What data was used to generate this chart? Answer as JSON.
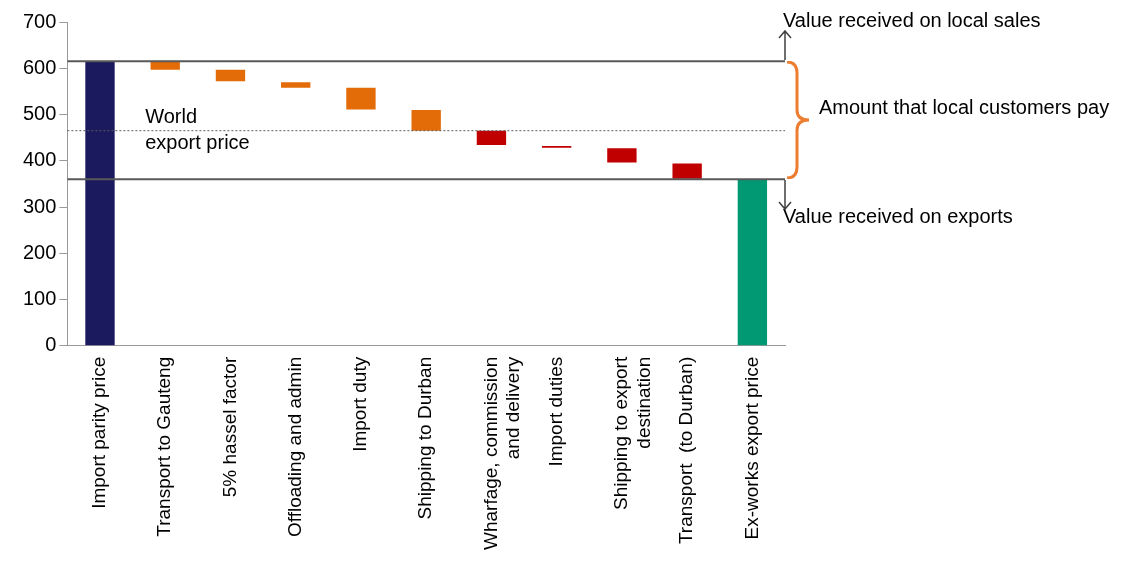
{
  "chart_data": {
    "type": "bar",
    "categories": [
      "Import parity price",
      "Transport to Gauteng",
      "5% hassel factor",
      "Offloading and admin",
      "Import duty",
      "Shipping to Durban",
      "Wharfage, commission and delivery",
      "Import duties",
      "Shipping to export destination",
      "Transport  (to Durban)",
      "Ex-works export price"
    ],
    "values": [
      615,
      18,
      25,
      12,
      47,
      45,
      31,
      4,
      31,
      33,
      360
    ],
    "base": [
      0,
      597,
      572,
      558,
      511,
      465,
      434,
      428,
      396,
      361,
      0
    ],
    "colors": [
      "#1c1a5e",
      "#e36c09",
      "#e36c09",
      "#e36c09",
      "#e36c09",
      "#e36c09",
      "#c00000",
      "#c00000",
      "#c00000",
      "#c00000",
      "#009973"
    ],
    "ylim": [
      0,
      700
    ],
    "yticks": [
      0,
      100,
      200,
      300,
      400,
      500,
      600,
      700
    ],
    "grid": false,
    "legend": false,
    "ref_lines": [
      {
        "axis": "y",
        "value": 615,
        "label": "Value received on local sales",
        "color": "#595959",
        "line_style": "solid"
      },
      {
        "axis": "y",
        "value": 465,
        "label": "World export price",
        "color": "#595959",
        "line_style": "dotted"
      },
      {
        "axis": "y",
        "value": 360,
        "label": "Value received on exports",
        "color": "#595959",
        "line_style": "solid"
      }
    ],
    "annotations": [
      "Amount that local customers pay"
    ]
  }
}
